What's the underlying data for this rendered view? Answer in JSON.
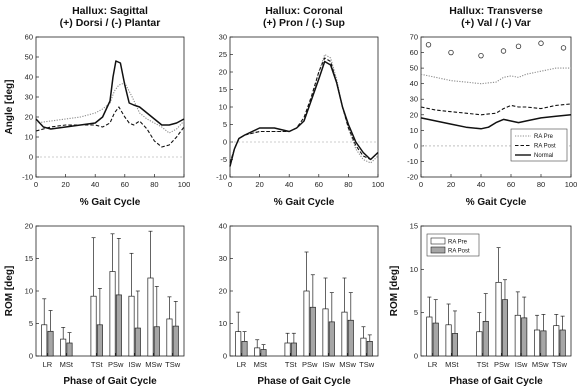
{
  "chart_data": [
    {
      "type": "line",
      "title": [
        "Hallux: Sagittal",
        "(+) Dorsi / (-) Plantar"
      ],
      "xlabel": "% Gait Cycle",
      "ylabel": "Angle [deg]",
      "xlim": [
        0,
        100
      ],
      "ylim": [
        -10,
        60
      ],
      "xticks": [
        0,
        20,
        40,
        60,
        80,
        100
      ],
      "yticks": [
        -10,
        0,
        10,
        20,
        30,
        40,
        50,
        60
      ],
      "grid": false,
      "zero_line": true,
      "series": [
        {
          "name": "RA Pre",
          "style": "dotted",
          "x": [
            0,
            10,
            20,
            30,
            40,
            45,
            50,
            53,
            56,
            60,
            65,
            70,
            75,
            80,
            85,
            90,
            95,
            100
          ],
          "y": [
            17,
            18,
            19,
            20,
            22,
            24,
            27,
            33,
            36,
            37,
            30,
            22,
            19,
            17,
            15,
            12,
            14,
            18
          ]
        },
        {
          "name": "RA Post",
          "style": "dashed",
          "x": [
            0,
            10,
            20,
            30,
            40,
            45,
            50,
            53,
            56,
            60,
            63,
            66,
            70,
            75,
            80,
            85,
            90,
            95,
            100
          ],
          "y": [
            13,
            15,
            16,
            16,
            16,
            15,
            17,
            22,
            25,
            20,
            17,
            16,
            18,
            14,
            8,
            5,
            6,
            10,
            15
          ]
        },
        {
          "name": "Normal",
          "style": "solid",
          "x": [
            0,
            5,
            10,
            20,
            30,
            40,
            45,
            50,
            52,
            54,
            57,
            60,
            63,
            66,
            70,
            75,
            80,
            85,
            90,
            95,
            100
          ],
          "y": [
            19,
            15,
            14,
            15,
            16,
            17,
            20,
            28,
            40,
            48,
            47,
            36,
            27,
            26,
            25,
            22,
            19,
            16,
            16,
            17,
            19
          ]
        }
      ]
    },
    {
      "type": "line",
      "title": [
        "Hallux: Coronal",
        "(+) Pron / (-) Sup"
      ],
      "xlabel": "% Gait Cycle",
      "ylabel": "",
      "xlim": [
        0,
        100
      ],
      "ylim": [
        -10,
        30
      ],
      "xticks": [
        0,
        20,
        40,
        60,
        80,
        100
      ],
      "yticks": [
        -10,
        -5,
        0,
        5,
        10,
        15,
        20,
        25,
        30
      ],
      "grid": false,
      "zero_line": true,
      "series": [
        {
          "name": "RA Pre",
          "style": "dotted",
          "x": [
            0,
            3,
            6,
            10,
            20,
            30,
            40,
            45,
            50,
            55,
            60,
            64,
            68,
            72,
            76,
            80,
            85,
            90,
            95,
            100
          ],
          "y": [
            -6,
            -2,
            1,
            2,
            3,
            3,
            3,
            4,
            6,
            12,
            20,
            25,
            24,
            18,
            10,
            4,
            -2,
            -5,
            -6,
            -4
          ]
        },
        {
          "name": "RA Post",
          "style": "dashed",
          "x": [
            0,
            3,
            6,
            10,
            20,
            30,
            40,
            45,
            50,
            55,
            60,
            64,
            68,
            72,
            76,
            80,
            85,
            90,
            95,
            100
          ],
          "y": [
            -6,
            -2,
            1,
            2,
            3,
            3,
            3,
            4,
            7,
            13,
            20,
            24,
            23,
            17,
            10,
            4,
            -1,
            -4,
            -5,
            -3
          ]
        },
        {
          "name": "Normal",
          "style": "solid",
          "x": [
            0,
            3,
            6,
            10,
            20,
            30,
            40,
            45,
            50,
            55,
            60,
            64,
            68,
            72,
            76,
            80,
            85,
            90,
            95,
            100
          ],
          "y": [
            -7,
            -2,
            1,
            2,
            4,
            4,
            3,
            4,
            6,
            12,
            18,
            23,
            22,
            17,
            10,
            5,
            0,
            -3,
            -5,
            -3
          ]
        }
      ]
    },
    {
      "type": "line",
      "title": [
        "Hallux: Transverse",
        "(+) Val / (-) Var"
      ],
      "xlabel": "% Gait Cycle",
      "ylabel": "",
      "xlim": [
        0,
        100
      ],
      "ylim": [
        -20,
        70
      ],
      "xticks": [
        0,
        20,
        40,
        60,
        80,
        100
      ],
      "yticks": [
        -20,
        -10,
        0,
        10,
        20,
        30,
        40,
        50,
        60,
        70
      ],
      "grid": false,
      "zero_line": true,
      "legend": {
        "placement": "bottom-right",
        "entries": [
          "RA Pre",
          "RA Post",
          "Normal"
        ]
      },
      "series": [
        {
          "name": "RA Pre",
          "style": "dotted",
          "x": [
            0,
            10,
            20,
            30,
            40,
            50,
            55,
            60,
            65,
            70,
            80,
            90,
            100
          ],
          "y": [
            46,
            44,
            42,
            41,
            40,
            41,
            44,
            45,
            44,
            46,
            48,
            50,
            50
          ]
        },
        {
          "name": "RA Post",
          "style": "dashed",
          "x": [
            0,
            10,
            20,
            30,
            40,
            50,
            55,
            60,
            65,
            70,
            80,
            90,
            100
          ],
          "y": [
            25,
            23,
            22,
            21,
            20,
            21,
            24,
            26,
            25,
            25,
            24,
            26,
            27
          ]
        },
        {
          "name": "Normal",
          "style": "solid",
          "x": [
            0,
            10,
            20,
            30,
            40,
            45,
            50,
            55,
            60,
            65,
            70,
            80,
            90,
            100
          ],
          "y": [
            18,
            16,
            14,
            12,
            11,
            12,
            15,
            17,
            16,
            15,
            16,
            18,
            19,
            20
          ]
        },
        {
          "name": "",
          "style": "circles",
          "x": [
            5,
            20,
            40,
            55,
            65,
            80,
            95
          ],
          "y": [
            65,
            60,
            58,
            61,
            64,
            66,
            63
          ]
        }
      ]
    },
    {
      "type": "bar",
      "title": "",
      "xlabel": "Phase of Gait Cycle",
      "ylabel": "ROM [deg]",
      "ylim": [
        0,
        20
      ],
      "yticks": [
        0,
        5,
        10,
        15,
        20
      ],
      "categories": [
        "LR",
        "MSt",
        "TSt",
        "PSw",
        "ISw",
        "MSw",
        "TSw"
      ],
      "group_positions": [
        0,
        1,
        2.6,
        3.6,
        4.6,
        5.6,
        6.6
      ],
      "series": [
        {
          "name": "RA Pre",
          "fill": "#ffffff",
          "values": [
            4.8,
            2.6,
            9.2,
            13.0,
            9.2,
            12.0,
            5.7
          ],
          "err": [
            4.0,
            1.8,
            9.0,
            5.8,
            6.6,
            7.2,
            3.4
          ]
        },
        {
          "name": "RA Post",
          "fill": "#a6a6a6",
          "values": [
            3.8,
            2.0,
            4.8,
            9.4,
            4.3,
            4.5,
            4.6
          ],
          "err": [
            3.2,
            1.6,
            5.6,
            8.7,
            5.7,
            6.2,
            3.8
          ]
        }
      ]
    },
    {
      "type": "bar",
      "title": "",
      "xlabel": "Phase of Gait Cycle",
      "ylabel": "",
      "ylim": [
        0,
        40
      ],
      "yticks": [
        0,
        10,
        20,
        30,
        40
      ],
      "categories": [
        "LR",
        "MSt",
        "TSt",
        "PSw",
        "ISw",
        "MSw",
        "TSw"
      ],
      "group_positions": [
        0,
        1,
        2.6,
        3.6,
        4.6,
        5.6,
        6.6
      ],
      "series": [
        {
          "name": "RA Pre",
          "fill": "#ffffff",
          "values": [
            7.5,
            2.5,
            4.0,
            20.0,
            14.5,
            13.5,
            5.5
          ],
          "err": [
            6.0,
            2.5,
            3.0,
            12.0,
            9.5,
            10.5,
            3.5
          ]
        },
        {
          "name": "RA Post",
          "fill": "#a6a6a6",
          "values": [
            4.5,
            2.0,
            4.0,
            15.0,
            10.5,
            11.0,
            4.5
          ],
          "err": [
            3.0,
            1.5,
            3.0,
            10.0,
            9.0,
            8.5,
            2.0
          ]
        }
      ]
    },
    {
      "type": "bar",
      "title": "",
      "xlabel": "Phase of Gait Cycle",
      "ylabel": "ROM [deg]",
      "ylim": [
        0,
        15
      ],
      "yticks": [
        0,
        5,
        10,
        15
      ],
      "categories": [
        "LR",
        "MSt",
        "TSt",
        "PSw",
        "ISw",
        "MSw",
        "TSw"
      ],
      "group_positions": [
        0,
        1,
        2.6,
        3.6,
        4.6,
        5.6,
        6.6
      ],
      "legend": {
        "placement": "top-left",
        "entries": [
          "RA Pre",
          "RA Post"
        ]
      },
      "series": [
        {
          "name": "RA Pre",
          "fill": "#ffffff",
          "values": [
            4.5,
            3.6,
            2.8,
            8.5,
            4.7,
            3.0,
            3.5
          ],
          "err": [
            2.3,
            2.4,
            2.2,
            4.0,
            2.7,
            1.7,
            1.3
          ]
        },
        {
          "name": "RA Post",
          "fill": "#a6a6a6",
          "values": [
            3.8,
            2.6,
            4.0,
            6.5,
            4.4,
            2.9,
            3.0
          ],
          "err": [
            2.7,
            2.6,
            3.2,
            2.3,
            2.4,
            1.9,
            1.6
          ]
        }
      ]
    }
  ]
}
